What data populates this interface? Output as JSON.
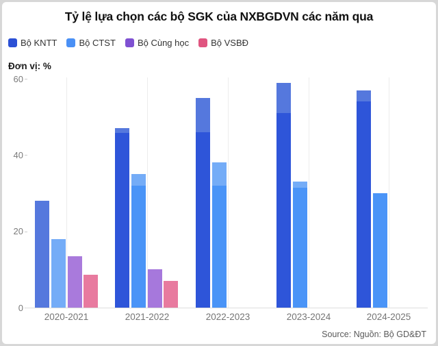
{
  "header": {
    "title": "Tỷ lệ lựa chọn các bộ SGK của NXBGDVN các năm qua"
  },
  "chart_data": {
    "type": "bar",
    "title": "Tỷ lệ lựa chọn các bộ SGK của NXBGDVN các năm qua",
    "unit_label": "Đơn vị: %",
    "categories": [
      "2020-2021",
      "2021-2022",
      "2022-2023",
      "2023-2024",
      "2024-2025"
    ],
    "series": [
      {
        "name": "Bộ KNTT",
        "legend_color": "#2b50d5",
        "bar_color": "#2e55d9",
        "bar_light_color": "#5578dd",
        "values": [
          28,
          47,
          55,
          59,
          57
        ],
        "dark_values": [
          0,
          45.8,
          46,
          51,
          54
        ]
      },
      {
        "name": "Bộ CTST",
        "legend_color": "#4a90f5",
        "bar_color": "#4a94f7",
        "bar_light_color": "#74acf7",
        "values": [
          18,
          35,
          38,
          33,
          30
        ],
        "dark_values": [
          0,
          32,
          32,
          31.5,
          30
        ]
      },
      {
        "name": "Bộ Cùng học",
        "legend_color": "#7f51d2",
        "bar_color": "#a678dc",
        "bar_light_color": "#a97adc",
        "values": [
          13.5,
          10,
          0,
          0,
          0
        ],
        "dark_values": [
          0,
          10,
          0,
          0,
          0
        ]
      },
      {
        "name": "Bộ VSBĐ",
        "legend_color": "#e05580",
        "bar_color": "#e87a9f",
        "bar_light_color": "#e87a9f",
        "values": [
          8.6,
          7,
          0,
          0,
          0
        ],
        "dark_values": [
          0,
          7,
          0,
          0,
          0
        ]
      }
    ],
    "yticks": [
      0,
      20,
      40,
      60
    ],
    "ylim": [
      0,
      60
    ],
    "grid": "vertical-category-lines",
    "legend_position": "top-left"
  },
  "footer": {
    "source": "Source: Nguồn: Bộ GD&ĐT"
  }
}
